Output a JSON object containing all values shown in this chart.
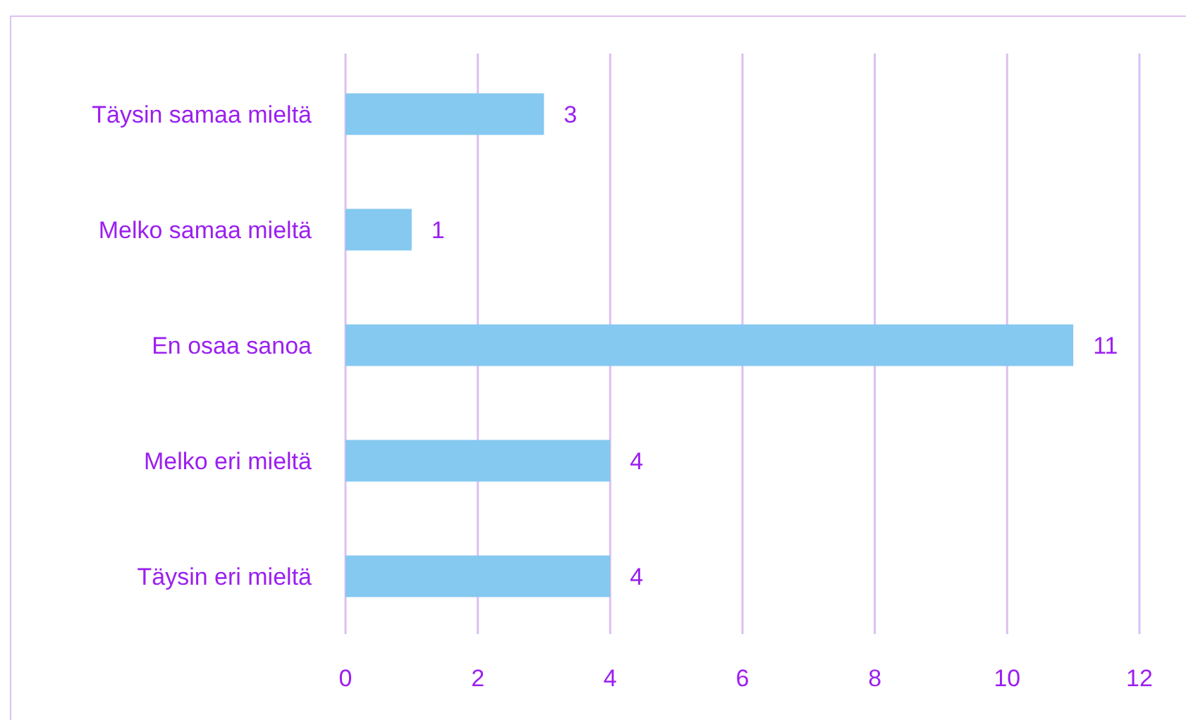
{
  "chart_data": {
    "type": "bar",
    "orientation": "horizontal",
    "categories": [
      "Täysin samaa mieltä",
      "Melko samaa mieltä",
      "En osaa sanoa",
      "Melko eri mieltä",
      "Täysin eri mieltä"
    ],
    "values": [
      3,
      1,
      11,
      4,
      4
    ],
    "color": "#85c8f0",
    "xlim": [
      0,
      12
    ],
    "xticks": [
      0,
      2,
      4,
      6,
      8,
      10,
      12
    ],
    "grid": "x",
    "data_labels": true
  }
}
